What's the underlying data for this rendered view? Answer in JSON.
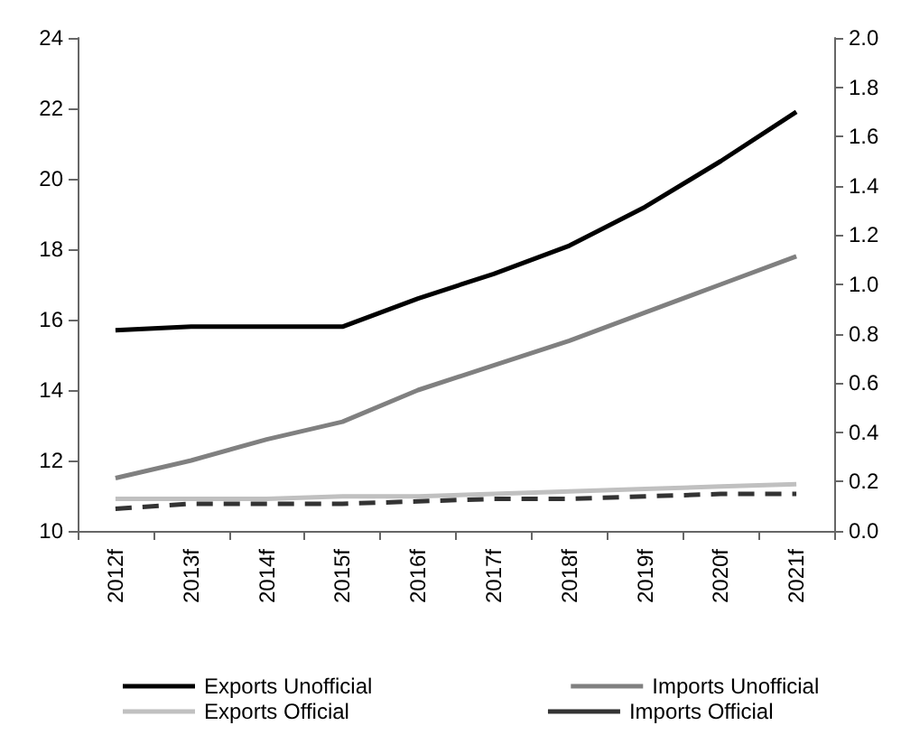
{
  "chart_data": {
    "type": "line",
    "categories": [
      "2012f",
      "2013f",
      "2014f",
      "2015f",
      "2016f",
      "2017f",
      "2018f",
      "2019f",
      "2020f",
      "2021f"
    ],
    "series": [
      {
        "name": "Exports Unofficial",
        "color": "#000000",
        "values": [
          15.7,
          15.8,
          15.8,
          15.8,
          16.6,
          17.3,
          18.1,
          19.2,
          20.5,
          21.9
        ]
      },
      {
        "name": "Imports Unofficial",
        "color": "#808080",
        "values": [
          11.5,
          12.0,
          12.6,
          13.1,
          14.0,
          14.7,
          15.4,
          16.2,
          17.0,
          17.8
        ]
      },
      {
        "name": "Exports Official",
        "color": "#c0c0c0",
        "axis": "y2",
        "values": [
          0.13,
          0.13,
          0.13,
          0.14,
          0.14,
          0.15,
          0.16,
          0.17,
          0.18,
          0.19
        ]
      },
      {
        "name": "Imports Official",
        "color": "#333333",
        "axis": "y2",
        "line_style": "dashed",
        "values": [
          0.09,
          0.11,
          0.11,
          0.11,
          0.12,
          0.13,
          0.13,
          0.14,
          0.15,
          0.15
        ]
      }
    ],
    "ylim": [
      10,
      24
    ],
    "yticks": [
      10,
      12,
      14,
      16,
      18,
      20,
      22,
      24
    ],
    "y2lim": [
      0,
      2.0
    ],
    "y2ticks": [
      {
        "value": 0,
        "label": "0.0"
      },
      {
        "value": 0.2,
        "label": "0.2"
      },
      {
        "value": 0.4,
        "label": "0.4"
      },
      {
        "value": 0.6,
        "label": "0.6"
      },
      {
        "value": 0.8,
        "label": "0.8"
      },
      {
        "value": 1.0,
        "label": "1.0"
      },
      {
        "value": 1.2,
        "label": "1.2"
      },
      {
        "value": 1.4,
        "label": "1.4"
      },
      {
        "value": 1.6,
        "label": "1.6"
      },
      {
        "value": 1.8,
        "label": "1.8"
      },
      {
        "value": 2.0,
        "label": "2.0"
      }
    ],
    "grid": false,
    "legend": "bottom",
    "marker": "none",
    "line_style": "solid"
  }
}
